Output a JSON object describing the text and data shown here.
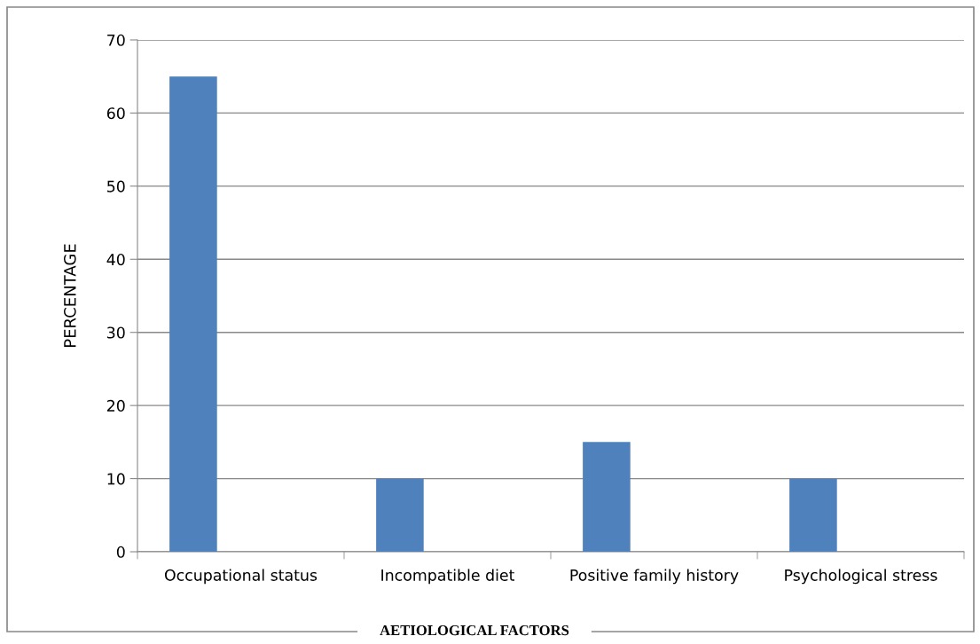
{
  "chart_data": {
    "type": "bar",
    "xlabel": "AETIOLOGICAL FACTORS",
    "ylabel": "PERCENTAGE",
    "categories": [
      "Occupational status",
      "Incompatible diet",
      "Positive family history",
      "Psychological stress"
    ],
    "values": [
      65,
      10,
      15,
      10
    ],
    "color": "#4f81bd",
    "ylim": [
      0,
      70
    ],
    "yticks": [
      0,
      10,
      20,
      30,
      40,
      50,
      60,
      70
    ],
    "grid": "y",
    "legend": false
  }
}
